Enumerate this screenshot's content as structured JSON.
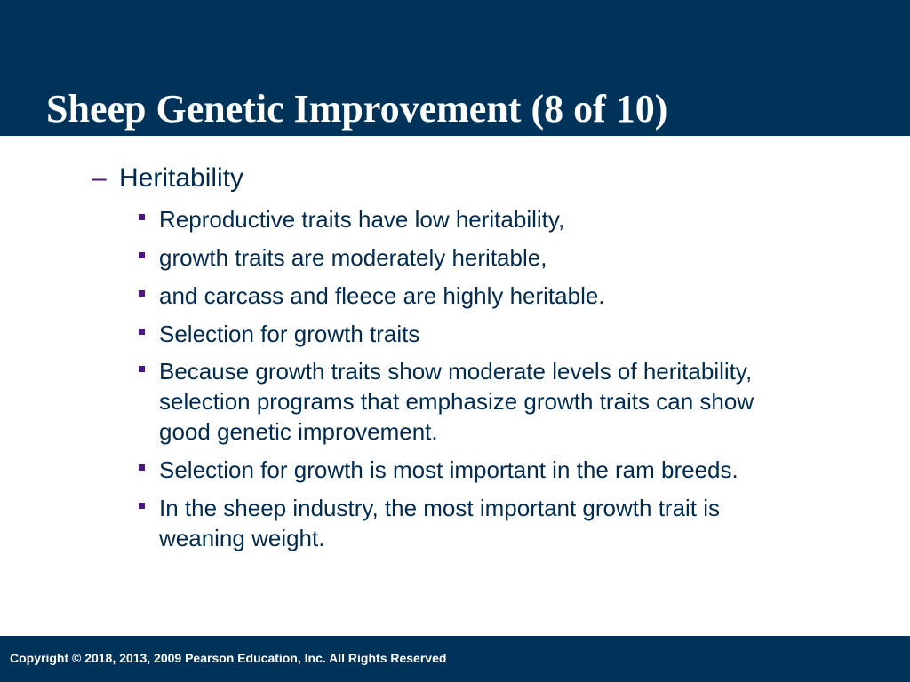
{
  "slide": {
    "title": "Sheep Genetic Improvement (8 of 10)",
    "colors": {
      "header_background": "#003359",
      "footer_background": "#003359",
      "text": "#002b4f",
      "bullet_marker": "#4a1a7a"
    },
    "level1": {
      "marker": "–",
      "label": "Heritability"
    },
    "bullets": [
      {
        "text": "Reproductive traits have low heritability,"
      },
      {
        "text": "growth traits are moderately heritable,"
      },
      {
        "text": "and carcass and fleece are highly heritable."
      },
      {
        "text": "Selection for growth traits"
      },
      {
        "text": "Because growth traits show moderate levels of heritability,\nselection programs that emphasize growth traits can show\ngood genetic improvement."
      },
      {
        "text": "Selection for growth is most important in the ram breeds."
      },
      {
        "text": "In the sheep industry, the most important growth trait is\nweaning weight."
      }
    ],
    "footer": {
      "copyright": "Copyright © 2018, 2013, 2009 Pearson Education, Inc. All Rights Reserved"
    }
  }
}
